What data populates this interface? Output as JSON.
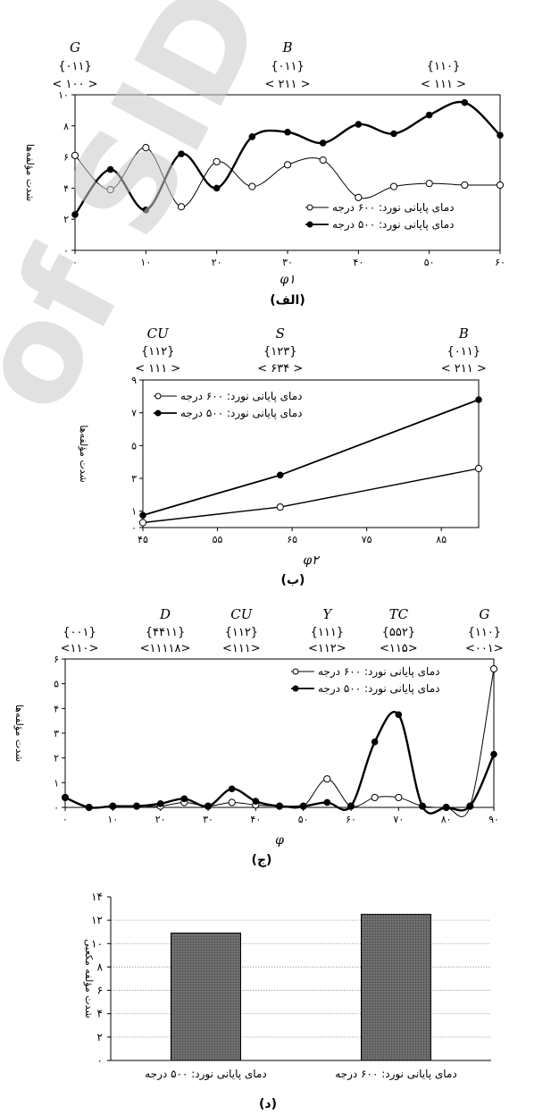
{
  "watermark": {
    "text": "of SID",
    "color": "#c8c8c8"
  },
  "chart_data": [
    {
      "id": "alef",
      "type": "line",
      "caption": "(الف)",
      "xlabel": "φ۱",
      "ylabel": "شدت مؤلفه‌ها",
      "xlim": [
        0,
        60
      ],
      "ylim": [
        0,
        10
      ],
      "xticks": [
        0,
        10,
        20,
        30,
        40,
        50,
        60
      ],
      "xtick_labels": [
        "۰",
        "۱۰",
        "۲۰",
        "۳۰",
        "۴۰",
        "۵۰",
        "۶۰"
      ],
      "yticks": [
        0,
        2,
        4,
        6,
        8,
        10
      ],
      "ytick_labels": [
        "۰",
        "۲",
        "۴",
        "۶",
        "۸",
        "۱۰"
      ],
      "x": [
        0,
        5,
        10,
        15,
        20,
        25,
        30,
        35,
        40,
        45,
        50,
        55,
        60
      ],
      "smooth": true,
      "series": [
        {
          "name": "دمای پایانی نورد: ۶۰۰ درجه",
          "marker": "open",
          "stroke": 1,
          "values": [
            6.1,
            3.9,
            6.6,
            2.8,
            5.7,
            4.1,
            5.5,
            5.8,
            3.4,
            4.1,
            4.3,
            4.2,
            4.2
          ]
        },
        {
          "name": "دمای پایانی نورد: ۵۰۰ درجه",
          "marker": "filled",
          "stroke": 2.4,
          "values": [
            2.3,
            5.2,
            2.6,
            6.2,
            4.0,
            7.3,
            7.6,
            6.9,
            8.1,
            7.5,
            8.7,
            9.5,
            7.4
          ]
        }
      ],
      "legend": "bottom-right",
      "annotations": [
        {
          "x": 0,
          "lines": [
            "G",
            "{۰۱۱}",
            "< ۱۰۰ >"
          ]
        },
        {
          "x": 30,
          "lines": [
            "B",
            "{۰۱۱}",
            "< ۲۱۱ >"
          ]
        },
        {
          "x": 52,
          "lines": [
            "{۱۱۰}",
            "< ۱۱۱ >"
          ]
        }
      ]
    },
    {
      "id": "be",
      "type": "line",
      "caption": "(ب)",
      "xlabel": "φ۲",
      "ylabel": "شدت مؤلفه‌ها",
      "xlim": [
        45,
        90
      ],
      "ylim": [
        0,
        9
      ],
      "xticks": [
        45,
        55,
        65,
        75,
        85
      ],
      "xtick_labels": [
        "۴۵",
        "۵۵",
        "۶۵",
        "۷۵",
        "۸۵"
      ],
      "yticks": [
        0,
        1,
        3,
        5,
        7,
        9
      ],
      "ytick_labels": [
        "۰",
        "۱",
        "۳",
        "۵",
        "۷",
        "۹"
      ],
      "x": [
        45,
        63.4,
        90
      ],
      "smooth": false,
      "series": [
        {
          "name": "دمای پایانی نورد: ۶۰۰ درجه",
          "marker": "open",
          "stroke": 1.4,
          "values": [
            0.3,
            1.25,
            3.6
          ]
        },
        {
          "name": "دمای پایانی نورد: ۵۰۰ درجه",
          "marker": "filled",
          "stroke": 1.8,
          "values": [
            0.75,
            3.2,
            7.8
          ]
        }
      ],
      "legend": "top-left",
      "annotations": [
        {
          "x": 47,
          "lines": [
            "CU",
            "{۱۱۲}",
            "< ۱۱۱ >"
          ]
        },
        {
          "x": 63.4,
          "lines": [
            "S",
            "{۱۲۳}",
            "< ۶۳۴ >"
          ]
        },
        {
          "x": 88,
          "lines": [
            "B",
            "{۰۱۱}",
            "< ۲۱۱ >"
          ]
        }
      ]
    },
    {
      "id": "jim",
      "type": "line",
      "caption": "(ج)",
      "xlabel": "φ",
      "ylabel": "شدت مؤلفه‌ها",
      "xlim": [
        0,
        90
      ],
      "ylim": [
        0,
        6
      ],
      "xticks": [
        0,
        10,
        20,
        30,
        40,
        50,
        60,
        70,
        80,
        90
      ],
      "xtick_labels": [
        "۰",
        "۱۰",
        "۲۰",
        "۳۰",
        "۴۰",
        "۵۰",
        "۶۰",
        "۷۰",
        "۸۰",
        "۹۰"
      ],
      "yticks": [
        0,
        1,
        2,
        3,
        4,
        5,
        6
      ],
      "ytick_labels": [
        "۰",
        "۱",
        "۲",
        "۳",
        "۴",
        "۵",
        "۶"
      ],
      "x": [
        0,
        5,
        10,
        15,
        20,
        25,
        30,
        35,
        40,
        45,
        50,
        55,
        60,
        65,
        70,
        75,
        80,
        85,
        90
      ],
      "smooth": true,
      "series": [
        {
          "name": "دمای پایانی نورد: ۶۰۰ درجه",
          "marker": "open",
          "stroke": 1,
          "values": [
            0.4,
            0.0,
            0.05,
            0.05,
            0.05,
            0.2,
            0.05,
            0.2,
            0.1,
            0.05,
            0.05,
            1.15,
            0.05,
            0.4,
            0.4,
            0.05,
            0.0,
            0.05,
            5.6
          ]
        },
        {
          "name": "دمای پایانی نورد: ۵۰۰ درجه",
          "marker": "filled",
          "stroke": 2.4,
          "values": [
            0.4,
            0.0,
            0.05,
            0.05,
            0.15,
            0.35,
            0.05,
            0.75,
            0.25,
            0.05,
            0.05,
            0.2,
            0.05,
            2.65,
            3.75,
            0.05,
            0.0,
            0.05,
            2.15
          ]
        }
      ],
      "legend": "top-right",
      "annotations": [
        {
          "x": 3,
          "lines": [
            "{۰۰۱}",
            "<۱۱۰>"
          ]
        },
        {
          "x": 21,
          "lines": [
            "D",
            "{۴۴۱۱}",
            "<۱۱۱۱۸>"
          ]
        },
        {
          "x": 37,
          "lines": [
            "CU",
            "{۱۱۲}",
            "<۱۱۱>"
          ]
        },
        {
          "x": 55,
          "lines": [
            "Y",
            "{۱۱۱}",
            "<۱۱۲>"
          ]
        },
        {
          "x": 70,
          "lines": [
            "TC",
            "{۵۵۲}",
            "<۱۱۵>"
          ]
        },
        {
          "x": 88,
          "lines": [
            "G",
            "{۱۱۰}",
            "<۰۰۱>"
          ]
        }
      ]
    },
    {
      "id": "dal",
      "type": "bar",
      "caption": "(د)",
      "ylabel": "شدت مؤلفه مکعبی",
      "ylim": [
        0,
        14
      ],
      "yticks": [
        0,
        2,
        4,
        6,
        8,
        10,
        12,
        14
      ],
      "ytick_labels": [
        "۰",
        "۲",
        "۴",
        "۶",
        "۸",
        "۱۰",
        "۱۲",
        "۱۴"
      ],
      "categories": [
        "دمای پایانی نورد: ۵۰۰ درجه",
        "دمای پایانی نورد: ۶۰۰ درجه"
      ],
      "values": [
        10.9,
        12.5
      ],
      "bar_color": "#6e6e6e",
      "grid": true
    }
  ]
}
